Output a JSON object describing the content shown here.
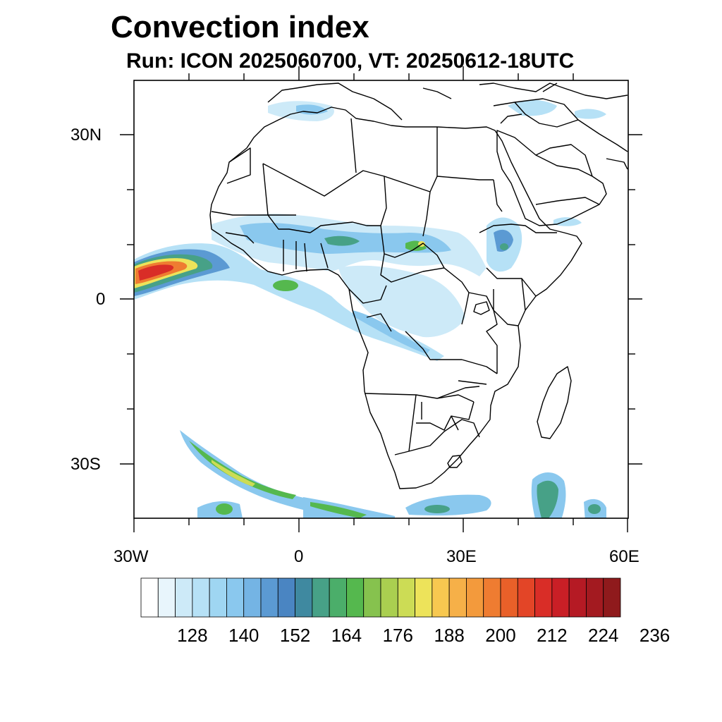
{
  "title": "Convection index",
  "subtitle": "Run: ICON 2025060700,  VT: 20250612-18UTC",
  "axes": {
    "y_labels": [
      "30N",
      "0",
      "30S"
    ],
    "x_labels": [
      "30W",
      "0",
      "30E",
      "60E"
    ],
    "lon_range": [
      -30,
      60
    ],
    "lat_range": [
      -40,
      40
    ]
  },
  "colorbar": {
    "tick_labels": [
      "128",
      "140",
      "152",
      "164",
      "176",
      "188",
      "200",
      "212",
      "224",
      "236"
    ],
    "colors": [
      "#ffffff",
      "#e8f5fc",
      "#cdeaf8",
      "#b6e1f6",
      "#9fd6f2",
      "#8ac8ee",
      "#74b4e4",
      "#5b9ad3",
      "#4a85c2",
      "#3f89a0",
      "#47a187",
      "#4bae6a",
      "#55b84e",
      "#86c24e",
      "#aacf50",
      "#ccdc55",
      "#ede35a",
      "#f7c850",
      "#f6b048",
      "#f39a3c",
      "#ef7c31",
      "#e96029",
      "#e34527",
      "#d92d27",
      "#c91f26",
      "#b51a24",
      "#a31a20",
      "#8f1a1c"
    ]
  }
}
